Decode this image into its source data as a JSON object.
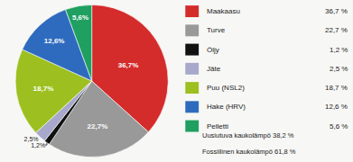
{
  "chart_data": {
    "type": "pie",
    "categories": [
      "Maakaasu",
      "Turve",
      "Öljy",
      "Jäte",
      "Puu (NSL2)",
      "Hake (HRV)",
      "Pelletti"
    ],
    "values": [
      36.7,
      22.7,
      1.2,
      2.5,
      18.7,
      12.6,
      5.6
    ],
    "value_labels": [
      "36,7%",
      "22,7%",
      "1,2%",
      "2,5%",
      "18,7%",
      "12,6%",
      "5,6%"
    ],
    "legend_value_labels": [
      "36,7 %",
      "22,7 %",
      "1,2 %",
      "2,5 %",
      "18,7 %",
      "12,6 %",
      "5,6 %"
    ],
    "colors": [
      "#d42b2b",
      "#999999",
      "#111111",
      "#a8a8cc",
      "#9dc020",
      "#2e6bbf",
      "#1fa060"
    ],
    "annotations": [
      "Uusiutuva kaukolämpö 38,2 %",
      "Fossiilinen kaukolämpö 61,8 %"
    ],
    "data_labels": true,
    "background_color": "#f7f7f5"
  }
}
